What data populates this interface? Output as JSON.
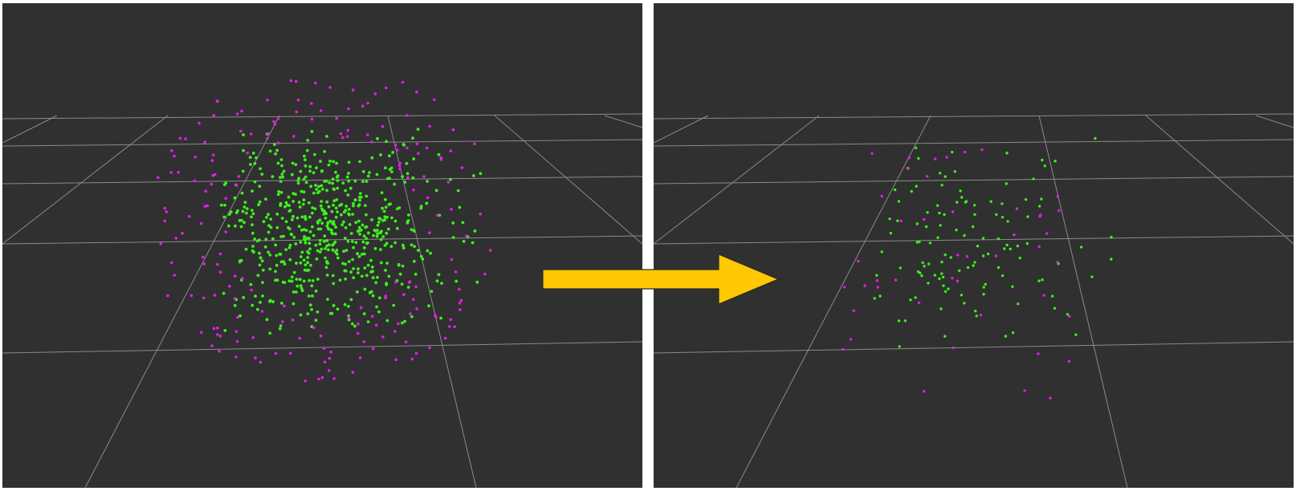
{
  "views": [
    {
      "id": "input",
      "description_label": ""
    },
    {
      "id": "output",
      "description_label": ""
    }
  ],
  "colors": {
    "background": "#303030",
    "grid": "#8a8a8a",
    "inlier": "#3cf01e",
    "outlier": "#e020e6",
    "arrow_fill": "#ffc800",
    "arrow_stroke": "#2a2a2a",
    "separator": "#ffffff"
  },
  "icons": {
    "transition": "right-arrow-icon"
  },
  "point_cloud": {
    "left_inlier_count": 600,
    "left_outlier_count": 190,
    "right_inlier_count": 120,
    "right_outlier_count": 45
  }
}
